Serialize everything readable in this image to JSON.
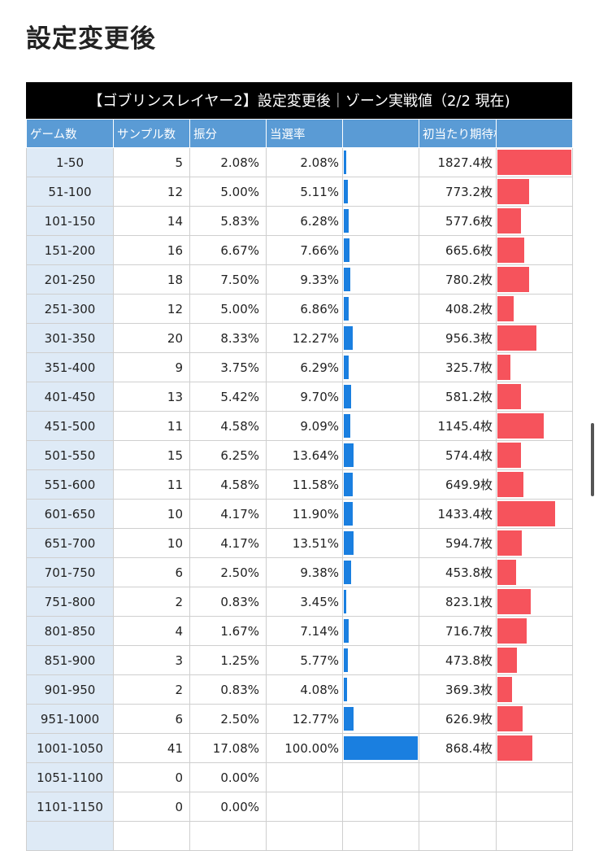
{
  "heading": "設定変更後",
  "table": {
    "title": "【ゴブリンスレイヤー2】設定変更後｜ゾーン実戦値（2/2 現在)",
    "headers": {
      "games": "ゲーム数",
      "samples": "サンプル数",
      "share": "振分",
      "rate": "当選率",
      "expected": "初当たり期待枚数"
    },
    "rows": [
      {
        "games": "1-50",
        "samples": "5",
        "share": "2.08%",
        "rate": "2.08%",
        "rate_pct": 2.08,
        "expected": "1827.4枚",
        "expected_val": 1827.4
      },
      {
        "games": "51-100",
        "samples": "12",
        "share": "5.00%",
        "rate": "5.11%",
        "rate_pct": 5.11,
        "expected": "773.2枚",
        "expected_val": 773.2
      },
      {
        "games": "101-150",
        "samples": "14",
        "share": "5.83%",
        "rate": "6.28%",
        "rate_pct": 6.28,
        "expected": "577.6枚",
        "expected_val": 577.6
      },
      {
        "games": "151-200",
        "samples": "16",
        "share": "6.67%",
        "rate": "7.66%",
        "rate_pct": 7.66,
        "expected": "665.6枚",
        "expected_val": 665.6
      },
      {
        "games": "201-250",
        "samples": "18",
        "share": "7.50%",
        "rate": "9.33%",
        "rate_pct": 9.33,
        "expected": "780.2枚",
        "expected_val": 780.2
      },
      {
        "games": "251-300",
        "samples": "12",
        "share": "5.00%",
        "rate": "6.86%",
        "rate_pct": 6.86,
        "expected": "408.2枚",
        "expected_val": 408.2
      },
      {
        "games": "301-350",
        "samples": "20",
        "share": "8.33%",
        "rate": "12.27%",
        "rate_pct": 12.27,
        "expected": "956.3枚",
        "expected_val": 956.3
      },
      {
        "games": "351-400",
        "samples": "9",
        "share": "3.75%",
        "rate": "6.29%",
        "rate_pct": 6.29,
        "expected": "325.7枚",
        "expected_val": 325.7
      },
      {
        "games": "401-450",
        "samples": "13",
        "share": "5.42%",
        "rate": "9.70%",
        "rate_pct": 9.7,
        "expected": "581.2枚",
        "expected_val": 581.2
      },
      {
        "games": "451-500",
        "samples": "11",
        "share": "4.58%",
        "rate": "9.09%",
        "rate_pct": 9.09,
        "expected": "1145.4枚",
        "expected_val": 1145.4
      },
      {
        "games": "501-550",
        "samples": "15",
        "share": "6.25%",
        "rate": "13.64%",
        "rate_pct": 13.64,
        "expected": "574.4枚",
        "expected_val": 574.4
      },
      {
        "games": "551-600",
        "samples": "11",
        "share": "4.58%",
        "rate": "11.58%",
        "rate_pct": 11.58,
        "expected": "649.9枚",
        "expected_val": 649.9
      },
      {
        "games": "601-650",
        "samples": "10",
        "share": "4.17%",
        "rate": "11.90%",
        "rate_pct": 11.9,
        "expected": "1433.4枚",
        "expected_val": 1433.4
      },
      {
        "games": "651-700",
        "samples": "10",
        "share": "4.17%",
        "rate": "13.51%",
        "rate_pct": 13.51,
        "expected": "594.7枚",
        "expected_val": 594.7
      },
      {
        "games": "701-750",
        "samples": "6",
        "share": "2.50%",
        "rate": "9.38%",
        "rate_pct": 9.38,
        "expected": "453.8枚",
        "expected_val": 453.8
      },
      {
        "games": "751-800",
        "samples": "2",
        "share": "0.83%",
        "rate": "3.45%",
        "rate_pct": 3.45,
        "expected": "823.1枚",
        "expected_val": 823.1
      },
      {
        "games": "801-850",
        "samples": "4",
        "share": "1.67%",
        "rate": "7.14%",
        "rate_pct": 7.14,
        "expected": "716.7枚",
        "expected_val": 716.7
      },
      {
        "games": "851-900",
        "samples": "3",
        "share": "1.25%",
        "rate": "5.77%",
        "rate_pct": 5.77,
        "expected": "473.8枚",
        "expected_val": 473.8
      },
      {
        "games": "901-950",
        "samples": "2",
        "share": "0.83%",
        "rate": "4.08%",
        "rate_pct": 4.08,
        "expected": "369.3枚",
        "expected_val": 369.3
      },
      {
        "games": "951-1000",
        "samples": "6",
        "share": "2.50%",
        "rate": "12.77%",
        "rate_pct": 12.77,
        "expected": "626.9枚",
        "expected_val": 626.9
      },
      {
        "games": "1001-1050",
        "samples": "41",
        "share": "17.08%",
        "rate": "100.00%",
        "rate_pct": 100.0,
        "expected": "868.4枚",
        "expected_val": 868.4
      },
      {
        "games": "1051-1100",
        "samples": "0",
        "share": "0.00%",
        "rate": "",
        "rate_pct": null,
        "expected": "",
        "expected_val": null
      },
      {
        "games": "1101-1150",
        "samples": "0",
        "share": "0.00%",
        "rate": "",
        "rate_pct": null,
        "expected": "",
        "expected_val": null
      },
      {
        "games": "",
        "samples": "",
        "share": "",
        "rate": "",
        "rate_pct": null,
        "expected": "",
        "expected_val": null
      }
    ]
  },
  "colors": {
    "header_bg": "#5a9bd5",
    "games_col_bg": "#deeaf6",
    "rate_bar": "#1a7fe0",
    "expected_bar": "#f6535c",
    "title_bg": "#000000"
  }
}
